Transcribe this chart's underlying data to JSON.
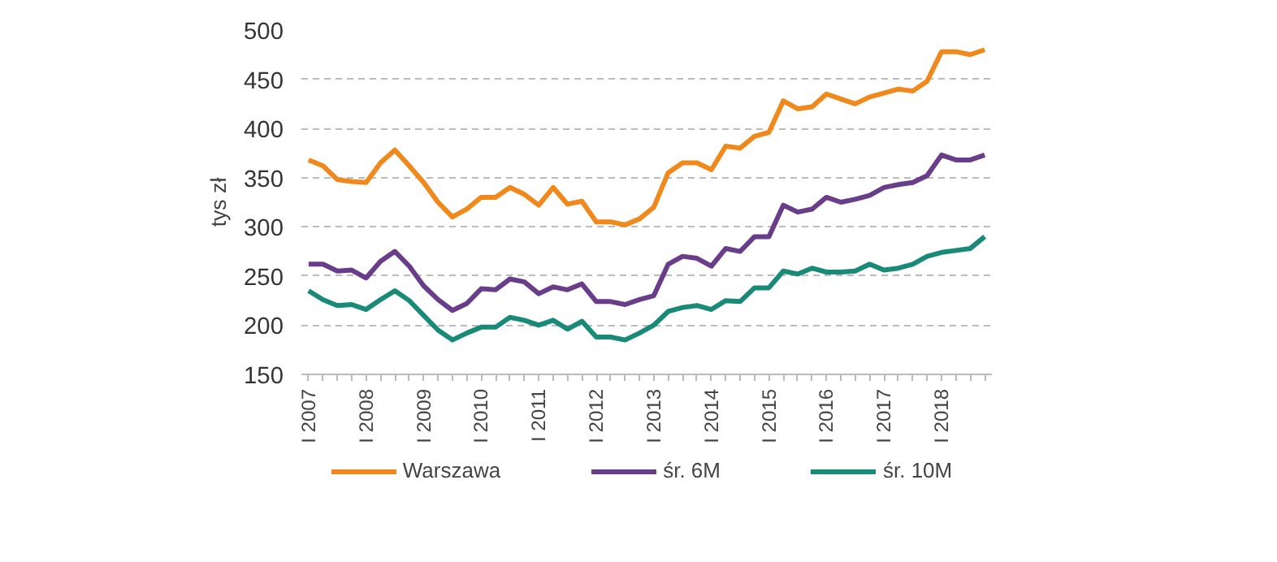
{
  "chart_data": {
    "type": "line",
    "ylabel": "tys zł",
    "categories": [
      "I 2007",
      null,
      null,
      null,
      "I 2008",
      null,
      null,
      null,
      "I 2009",
      null,
      null,
      null,
      "I 2010",
      null,
      null,
      null,
      "I 2011",
      null,
      null,
      null,
      "I 2012",
      null,
      null,
      null,
      "I 2013",
      null,
      null,
      null,
      "I 2014",
      null,
      null,
      null,
      "I 2015",
      null,
      null,
      null,
      "I 2016",
      null,
      null,
      null,
      "I 2017",
      null,
      null,
      null,
      "I 2018",
      null,
      null,
      null
    ],
    "series": [
      {
        "name": "Warszawa",
        "color": "#f0891c",
        "values": [
          368,
          362,
          348,
          346,
          345,
          365,
          378,
          362,
          345,
          325,
          310,
          318,
          330,
          330,
          340,
          333,
          322,
          340,
          323,
          326,
          305,
          305,
          302,
          308,
          320,
          355,
          365,
          365,
          358,
          382,
          380,
          392,
          396,
          428,
          420,
          422,
          435,
          430,
          425,
          432,
          436,
          440,
          438,
          448,
          478,
          478,
          475,
          480
        ]
      },
      {
        "name": "śr. 6M",
        "color": "#6a3d8a",
        "values": [
          262,
          262,
          255,
          256,
          248,
          265,
          275,
          260,
          240,
          226,
          215,
          222,
          237,
          236,
          247,
          244,
          232,
          239,
          236,
          242,
          224,
          224,
          221,
          226,
          230,
          262,
          270,
          268,
          260,
          278,
          275,
          290,
          290,
          322,
          315,
          318,
          330,
          325,
          328,
          332,
          340,
          343,
          345,
          352,
          373,
          368,
          368,
          373
        ]
      },
      {
        "name": "śr. 10M",
        "color": "#1a8a78",
        "values": [
          235,
          226,
          220,
          221,
          216,
          226,
          235,
          225,
          210,
          195,
          185,
          192,
          198,
          198,
          208,
          205,
          200,
          205,
          196,
          204,
          188,
          188,
          185,
          192,
          200,
          214,
          218,
          220,
          216,
          225,
          224,
          238,
          238,
          255,
          252,
          258,
          254,
          254,
          255,
          262,
          256,
          258,
          262,
          270,
          274,
          276,
          278,
          290
        ]
      }
    ],
    "ylim": [
      150,
      500
    ],
    "yticks": [
      150,
      200,
      250,
      300,
      350,
      400,
      450,
      500
    ],
    "grid": "y",
    "legend": "bottom",
    "line_style": "solid",
    "marker": "none"
  }
}
